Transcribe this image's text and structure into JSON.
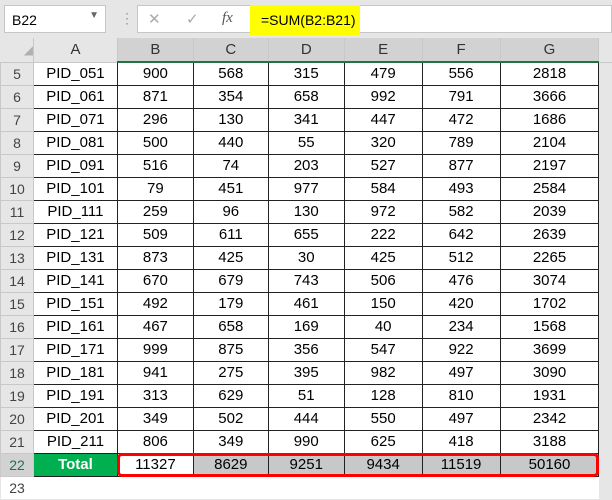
{
  "formula_bar": {
    "name_box": "B22",
    "cancel_icon": "✕",
    "enter_icon": "✓",
    "fx_label": "fx",
    "formula": "=SUM(B2:B21)",
    "highlight_color": "#ffff00"
  },
  "columns": [
    "A",
    "B",
    "C",
    "D",
    "E",
    "F",
    "G"
  ],
  "rows": [
    {
      "n": "5",
      "cells": [
        "PID_051",
        "900",
        "568",
        "315",
        "479",
        "556",
        "2818"
      ]
    },
    {
      "n": "6",
      "cells": [
        "PID_061",
        "871",
        "354",
        "658",
        "992",
        "791",
        "3666"
      ]
    },
    {
      "n": "7",
      "cells": [
        "PID_071",
        "296",
        "130",
        "341",
        "447",
        "472",
        "1686"
      ]
    },
    {
      "n": "8",
      "cells": [
        "PID_081",
        "500",
        "440",
        "55",
        "320",
        "789",
        "2104"
      ]
    },
    {
      "n": "9",
      "cells": [
        "PID_091",
        "516",
        "74",
        "203",
        "527",
        "877",
        "2197"
      ]
    },
    {
      "n": "10",
      "cells": [
        "PID_101",
        "79",
        "451",
        "977",
        "584",
        "493",
        "2584"
      ]
    },
    {
      "n": "11",
      "cells": [
        "PID_111",
        "259",
        "96",
        "130",
        "972",
        "582",
        "2039"
      ]
    },
    {
      "n": "12",
      "cells": [
        "PID_121",
        "509",
        "611",
        "655",
        "222",
        "642",
        "2639"
      ]
    },
    {
      "n": "13",
      "cells": [
        "PID_131",
        "873",
        "425",
        "30",
        "425",
        "512",
        "2265"
      ]
    },
    {
      "n": "14",
      "cells": [
        "PID_141",
        "670",
        "679",
        "743",
        "506",
        "476",
        "3074"
      ]
    },
    {
      "n": "15",
      "cells": [
        "PID_151",
        "492",
        "179",
        "461",
        "150",
        "420",
        "1702"
      ]
    },
    {
      "n": "16",
      "cells": [
        "PID_161",
        "467",
        "658",
        "169",
        "40",
        "234",
        "1568"
      ]
    },
    {
      "n": "17",
      "cells": [
        "PID_171",
        "999",
        "875",
        "356",
        "547",
        "922",
        "3699"
      ]
    },
    {
      "n": "18",
      "cells": [
        "PID_181",
        "941",
        "275",
        "395",
        "982",
        "497",
        "3090"
      ]
    },
    {
      "n": "19",
      "cells": [
        "PID_191",
        "313",
        "629",
        "51",
        "128",
        "810",
        "1931"
      ]
    },
    {
      "n": "20",
      "cells": [
        "PID_201",
        "349",
        "502",
        "444",
        "550",
        "497",
        "2342"
      ]
    },
    {
      "n": "21",
      "cells": [
        "PID_211",
        "806",
        "349",
        "990",
        "625",
        "418",
        "3188"
      ]
    }
  ],
  "total_row": {
    "n": "22",
    "cells": [
      "Total",
      "11327",
      "8629",
      "9251",
      "9434",
      "11519",
      "50160"
    ]
  },
  "empty_row": {
    "n": "23"
  },
  "colors": {
    "total_label_bg": "#00b050",
    "highlight_border": "#ff0000",
    "selection": "#217346"
  }
}
